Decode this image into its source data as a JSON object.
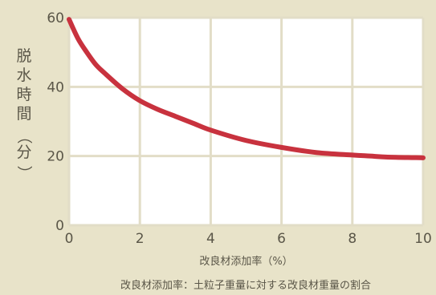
{
  "chart_data": {
    "type": "line",
    "xlabel": "改良材添加率（%）",
    "ylabel": "脱水時間（分）",
    "ylabel_chars": [
      "脱",
      "水",
      "時",
      "間",
      "（",
      "分",
      "）"
    ],
    "footnote": "改良材添加率：土粒子重量に対する改良材重量の割合",
    "x_ticks": [
      "0",
      "2",
      "4",
      "6",
      "8",
      "10"
    ],
    "y_ticks": [
      "0",
      "20",
      "40",
      "60"
    ],
    "xlim": [
      0,
      10
    ],
    "ylim": [
      0,
      60
    ],
    "grid": true,
    "series": [
      {
        "x": [
          0,
          0.25,
          0.5,
          0.75,
          1,
          1.5,
          2,
          2.5,
          3,
          3.5,
          4,
          5,
          6,
          7,
          8,
          8.5,
          9,
          10
        ],
        "y": [
          59.5,
          54,
          50,
          46.5,
          44,
          39.5,
          36,
          33.5,
          31.5,
          29.5,
          27.5,
          24.5,
          22.5,
          21,
          20.3,
          20,
          19.7,
          19.5
        ]
      }
    ],
    "colors": {
      "line": "#c8323e",
      "background": "#e8e3c9",
      "plot": "#ffffff",
      "grid": "#e2ddc7"
    }
  }
}
